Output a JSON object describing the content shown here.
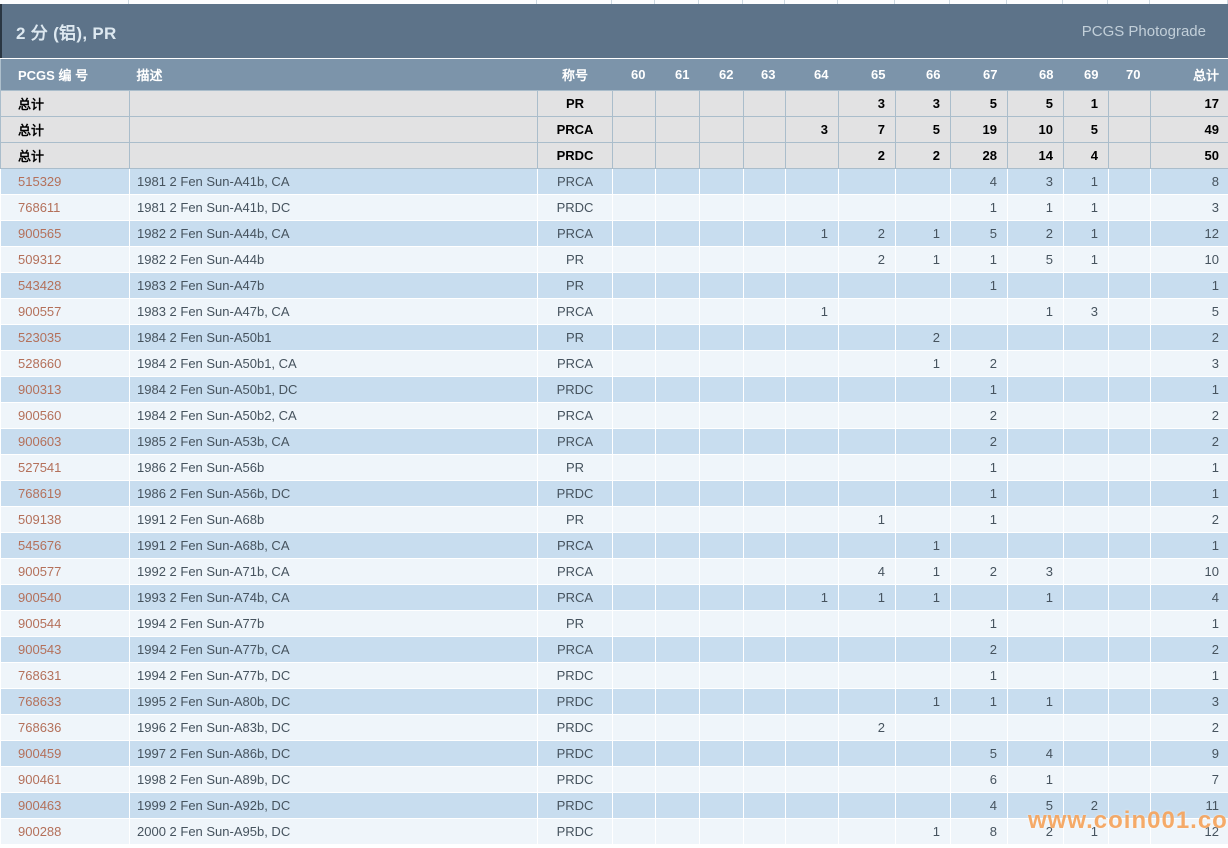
{
  "page": {
    "title": "2 分 (铝), PR",
    "brand": "PCGS Photograde",
    "watermark": "www.coin001.com"
  },
  "table": {
    "columns": [
      "PCGS 编 号",
      "描述",
      "称号",
      "60",
      "61",
      "62",
      "63",
      "64",
      "65",
      "66",
      "67",
      "68",
      "69",
      "70",
      "总计"
    ],
    "grade_scale": [
      "60",
      "61",
      "62",
      "63",
      "64",
      "65",
      "66",
      "67",
      "68",
      "69",
      "70"
    ],
    "total_label": "总计",
    "total_rows": [
      {
        "label": "总计",
        "description": "",
        "designation": "PR",
        "grades": [
          "",
          "",
          "",
          "",
          "",
          "3",
          "3",
          "5",
          "5",
          "1",
          ""
        ],
        "total": "17"
      },
      {
        "label": "总计",
        "description": "",
        "designation": "PRCA",
        "grades": [
          "",
          "",
          "",
          "",
          "3",
          "7",
          "5",
          "19",
          "10",
          "5",
          ""
        ],
        "total": "49"
      },
      {
        "label": "总计",
        "description": "",
        "designation": "PRDC",
        "grades": [
          "",
          "",
          "",
          "",
          "",
          "2",
          "2",
          "28",
          "14",
          "4",
          ""
        ],
        "total": "50"
      }
    ],
    "rows": [
      {
        "pcgs_no": "515329",
        "description": "1981 2 Fen Sun-A41b, CA",
        "designation": "PRCA",
        "grades": [
          "",
          "",
          "",
          "",
          "",
          "",
          "",
          "4",
          "3",
          "1",
          ""
        ],
        "total": "8"
      },
      {
        "pcgs_no": "768611",
        "description": "1981 2 Fen Sun-A41b, DC",
        "designation": "PRDC",
        "grades": [
          "",
          "",
          "",
          "",
          "",
          "",
          "",
          "1",
          "1",
          "1",
          ""
        ],
        "total": "3"
      },
      {
        "pcgs_no": "900565",
        "description": "1982 2 Fen Sun-A44b, CA",
        "designation": "PRCA",
        "grades": [
          "",
          "",
          "",
          "",
          "1",
          "2",
          "1",
          "5",
          "2",
          "1",
          ""
        ],
        "total": "12"
      },
      {
        "pcgs_no": "509312",
        "description": "1982 2 Fen Sun-A44b",
        "designation": "PR",
        "grades": [
          "",
          "",
          "",
          "",
          "",
          "2",
          "1",
          "1",
          "5",
          "1",
          ""
        ],
        "total": "10"
      },
      {
        "pcgs_no": "543428",
        "description": "1983 2 Fen Sun-A47b",
        "designation": "PR",
        "grades": [
          "",
          "",
          "",
          "",
          "",
          "",
          "",
          "1",
          "",
          "",
          ""
        ],
        "total": "1"
      },
      {
        "pcgs_no": "900557",
        "description": "1983 2 Fen Sun-A47b, CA",
        "designation": "PRCA",
        "grades": [
          "",
          "",
          "",
          "",
          "1",
          "",
          "",
          "",
          "1",
          "3",
          ""
        ],
        "total": "5"
      },
      {
        "pcgs_no": "523035",
        "description": "1984 2 Fen Sun-A50b1",
        "designation": "PR",
        "grades": [
          "",
          "",
          "",
          "",
          "",
          "",
          "2",
          "",
          "",
          "",
          ""
        ],
        "total": "2"
      },
      {
        "pcgs_no": "528660",
        "description": "1984 2 Fen Sun-A50b1, CA",
        "designation": "PRCA",
        "grades": [
          "",
          "",
          "",
          "",
          "",
          "",
          "1",
          "2",
          "",
          "",
          ""
        ],
        "total": "3"
      },
      {
        "pcgs_no": "900313",
        "description": "1984 2 Fen Sun-A50b1, DC",
        "designation": "PRDC",
        "grades": [
          "",
          "",
          "",
          "",
          "",
          "",
          "",
          "1",
          "",
          "",
          ""
        ],
        "total": "1"
      },
      {
        "pcgs_no": "900560",
        "description": "1984 2 Fen Sun-A50b2, CA",
        "designation": "PRCA",
        "grades": [
          "",
          "",
          "",
          "",
          "",
          "",
          "",
          "2",
          "",
          "",
          ""
        ],
        "total": "2"
      },
      {
        "pcgs_no": "900603",
        "description": "1985 2 Fen Sun-A53b, CA",
        "designation": "PRCA",
        "grades": [
          "",
          "",
          "",
          "",
          "",
          "",
          "",
          "2",
          "",
          "",
          ""
        ],
        "total": "2"
      },
      {
        "pcgs_no": "527541",
        "description": "1986 2 Fen Sun-A56b",
        "designation": "PR",
        "grades": [
          "",
          "",
          "",
          "",
          "",
          "",
          "",
          "1",
          "",
          "",
          ""
        ],
        "total": "1"
      },
      {
        "pcgs_no": "768619",
        "description": "1986 2 Fen Sun-A56b, DC",
        "designation": "PRDC",
        "grades": [
          "",
          "",
          "",
          "",
          "",
          "",
          "",
          "1",
          "",
          "",
          ""
        ],
        "total": "1"
      },
      {
        "pcgs_no": "509138",
        "description": "1991 2 Fen Sun-A68b",
        "designation": "PR",
        "grades": [
          "",
          "",
          "",
          "",
          "",
          "1",
          "",
          "1",
          "",
          "",
          ""
        ],
        "total": "2"
      },
      {
        "pcgs_no": "545676",
        "description": "1991 2 Fen Sun-A68b, CA",
        "designation": "PRCA",
        "grades": [
          "",
          "",
          "",
          "",
          "",
          "",
          "1",
          "",
          "",
          "",
          ""
        ],
        "total": "1"
      },
      {
        "pcgs_no": "900577",
        "description": "1992 2 Fen Sun-A71b, CA",
        "designation": "PRCA",
        "grades": [
          "",
          "",
          "",
          "",
          "",
          "4",
          "1",
          "2",
          "3",
          "",
          ""
        ],
        "total": "10"
      },
      {
        "pcgs_no": "900540",
        "description": "1993 2 Fen Sun-A74b, CA",
        "designation": "PRCA",
        "grades": [
          "",
          "",
          "",
          "",
          "1",
          "1",
          "1",
          "",
          "1",
          "",
          ""
        ],
        "total": "4"
      },
      {
        "pcgs_no": "900544",
        "description": "1994 2 Fen Sun-A77b",
        "designation": "PR",
        "grades": [
          "",
          "",
          "",
          "",
          "",
          "",
          "",
          "1",
          "",
          "",
          ""
        ],
        "total": "1"
      },
      {
        "pcgs_no": "900543",
        "description": "1994 2 Fen Sun-A77b, CA",
        "designation": "PRCA",
        "grades": [
          "",
          "",
          "",
          "",
          "",
          "",
          "",
          "2",
          "",
          "",
          ""
        ],
        "total": "2"
      },
      {
        "pcgs_no": "768631",
        "description": "1994 2 Fen Sun-A77b, DC",
        "designation": "PRDC",
        "grades": [
          "",
          "",
          "",
          "",
          "",
          "",
          "",
          "1",
          "",
          "",
          ""
        ],
        "total": "1"
      },
      {
        "pcgs_no": "768633",
        "description": "1995 2 Fen Sun-A80b, DC",
        "designation": "PRDC",
        "grades": [
          "",
          "",
          "",
          "",
          "",
          "",
          "1",
          "1",
          "1",
          "",
          ""
        ],
        "total": "3"
      },
      {
        "pcgs_no": "768636",
        "description": "1996 2 Fen Sun-A83b, DC",
        "designation": "PRDC",
        "grades": [
          "",
          "",
          "",
          "",
          "",
          "2",
          "",
          "",
          "",
          "",
          ""
        ],
        "total": "2"
      },
      {
        "pcgs_no": "900459",
        "description": "1997 2 Fen Sun-A86b, DC",
        "designation": "PRDC",
        "grades": [
          "",
          "",
          "",
          "",
          "",
          "",
          "",
          "5",
          "4",
          "",
          ""
        ],
        "total": "9"
      },
      {
        "pcgs_no": "900461",
        "description": "1998 2 Fen Sun-A89b, DC",
        "designation": "PRDC",
        "grades": [
          "",
          "",
          "",
          "",
          "",
          "",
          "",
          "6",
          "1",
          "",
          ""
        ],
        "total": "7"
      },
      {
        "pcgs_no": "900463",
        "description": "1999 2 Fen Sun-A92b, DC",
        "designation": "PRDC",
        "grades": [
          "",
          "",
          "",
          "",
          "",
          "",
          "",
          "4",
          "5",
          "2",
          ""
        ],
        "total": "11"
      },
      {
        "pcgs_no": "900288",
        "description": "2000 2 Fen Sun-A95b, DC",
        "designation": "PRDC",
        "grades": [
          "",
          "",
          "",
          "",
          "",
          "",
          "1",
          "8",
          "2",
          "1",
          ""
        ],
        "total": "12"
      }
    ]
  }
}
